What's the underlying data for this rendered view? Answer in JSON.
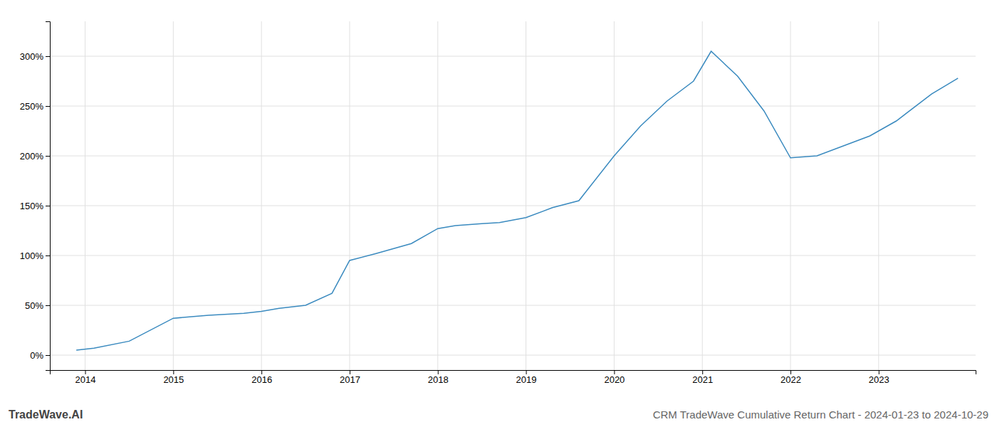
{
  "chart_data": {
    "type": "line",
    "title": "CRM TradeWave Cumulative Return Chart - 2024-01-23 to 2024-10-29",
    "annotations": [
      "TradeWave.AI"
    ],
    "x": [
      2013.9,
      2014.1,
      2014.5,
      2015.0,
      2015.4,
      2015.8,
      2016.0,
      2016.2,
      2016.5,
      2016.8,
      2017.0,
      2017.3,
      2017.7,
      2018.0,
      2018.2,
      2018.5,
      2018.7,
      2019.0,
      2019.3,
      2019.6,
      2020.0,
      2020.3,
      2020.6,
      2020.9,
      2021.1,
      2021.4,
      2021.7,
      2022.0,
      2022.3,
      2022.6,
      2022.9,
      2023.2,
      2023.6,
      2023.9
    ],
    "values": [
      5,
      7,
      14,
      37,
      40,
      42,
      44,
      47,
      50,
      62,
      95,
      102,
      112,
      127,
      130,
      132,
      133,
      138,
      148,
      155,
      200,
      230,
      255,
      275,
      305,
      280,
      245,
      198,
      200,
      210,
      220,
      235,
      262,
      278
    ],
    "color": "#3a8abf",
    "xlim": [
      2013.6,
      2024.1
    ],
    "xticks": [
      2014,
      2015,
      2016,
      2017,
      2018,
      2019,
      2020,
      2021,
      2022,
      2023
    ],
    "ylim": [
      -15,
      335
    ],
    "yticks": [
      {
        "value": 0,
        "label": "0%"
      },
      {
        "value": 50,
        "label": "50%"
      },
      {
        "value": 100,
        "label": "100%"
      },
      {
        "value": 150,
        "label": "150%"
      },
      {
        "value": 200,
        "label": "200%"
      },
      {
        "value": 250,
        "label": "250%"
      },
      {
        "value": 300,
        "label": "300%"
      }
    ],
    "grid": true
  }
}
